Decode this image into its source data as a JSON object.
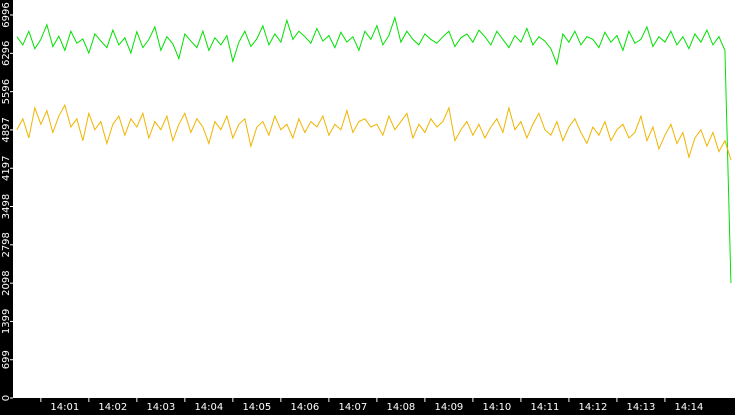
{
  "chart_data": {
    "type": "line",
    "x": [
      0,
      0.125,
      0.25,
      0.375,
      0.5,
      0.625,
      0.75,
      0.875,
      1,
      1.125,
      1.25,
      1.375,
      1.5,
      1.625,
      1.75,
      1.875,
      2,
      2.125,
      2.25,
      2.375,
      2.5,
      2.625,
      2.75,
      2.875,
      3,
      3.125,
      3.25,
      3.375,
      3.5,
      3.625,
      3.75,
      3.875,
      4,
      4.125,
      4.25,
      4.375,
      4.5,
      4.625,
      4.75,
      4.875,
      5,
      5.125,
      5.25,
      5.375,
      5.5,
      5.625,
      5.75,
      5.875,
      6,
      6.125,
      6.25,
      6.375,
      6.5,
      6.625,
      6.75,
      6.875,
      7,
      7.125,
      7.25,
      7.375,
      7.5,
      7.625,
      7.75,
      7.875,
      8,
      8.125,
      8.25,
      8.375,
      8.5,
      8.625,
      8.75,
      8.875,
      9,
      9.125,
      9.25,
      9.375,
      9.5,
      9.625,
      9.75,
      9.875,
      10,
      10.125,
      10.25,
      10.375,
      10.5,
      10.625,
      10.75,
      10.875,
      11,
      11.125,
      11.25,
      11.375,
      11.5,
      11.625,
      11.75,
      11.875,
      12,
      12.125,
      12.25,
      12.375,
      12.5,
      12.625,
      12.75,
      12.875,
      13,
      13.125,
      13.25,
      13.375,
      13.5,
      13.625,
      13.75,
      13.875,
      14,
      14.125,
      14.25,
      14.375,
      14.5,
      14.625,
      14.75,
      14.875
    ],
    "series": [
      {
        "color": "#00e000",
        "values": [
          6600,
          6450,
          6700,
          6380,
          6550,
          6820,
          6420,
          6610,
          6350,
          6700,
          6480,
          6560,
          6300,
          6650,
          6520,
          6400,
          6720,
          6450,
          6580,
          6300,
          6690,
          6400,
          6550,
          6780,
          6350,
          6600,
          6470,
          6200,
          6650,
          6520,
          6400,
          6700,
          6350,
          6580,
          6450,
          6620,
          6150,
          6500,
          6700,
          6420,
          6560,
          6800,
          6450,
          6650,
          6500,
          6900,
          6550,
          6700,
          6600,
          6480,
          6750,
          6520,
          6620,
          6400,
          6680,
          6500,
          6600,
          6350,
          6700,
          6550,
          6800,
          6450,
          6620,
          6950,
          6500,
          6700,
          6550,
          6450,
          6650,
          6550,
          6480,
          6600,
          6700,
          6420,
          6580,
          6650,
          6500,
          6720,
          6600,
          6450,
          6700,
          6550,
          6400,
          6620,
          6500,
          6750,
          6450,
          6600,
          6520,
          6380,
          6100,
          6650,
          6500,
          6700,
          6450,
          6600,
          6550,
          6400,
          6680,
          6500,
          6620,
          6350,
          6700,
          6480,
          6550,
          6780,
          6420,
          6600,
          6500,
          6700,
          6450,
          6600,
          6380,
          6650,
          6500,
          6720,
          6450,
          6600,
          6350,
          2100
        ]
      },
      {
        "color": "#f0b400",
        "values": [
          4900,
          5100,
          4750,
          5300,
          5000,
          5250,
          4850,
          5150,
          5350,
          4950,
          5100,
          4700,
          5200,
          4900,
          5050,
          4650,
          5000,
          5150,
          4800,
          5100,
          4950,
          5200,
          4750,
          5050,
          4900,
          5150,
          4700,
          5000,
          5200,
          4850,
          5100,
          4950,
          4650,
          5050,
          4900,
          5150,
          4750,
          5000,
          5100,
          4600,
          4950,
          5050,
          4800,
          5150,
          4900,
          5000,
          4750,
          5100,
          4850,
          5050,
          4950,
          5150,
          4800,
          5000,
          4900,
          5250,
          4850,
          5050,
          5100,
          4950,
          5000,
          4800,
          5150,
          4900,
          5050,
          5200,
          4750,
          5000,
          4850,
          5100,
          4950,
          5050,
          5300,
          4700,
          4900,
          5050,
          4800,
          5000,
          4750,
          4950,
          5100,
          4850,
          5300,
          4900,
          5050,
          4750,
          5000,
          5200,
          4900,
          4800,
          5050,
          4700,
          4950,
          5100,
          4850,
          4650,
          4950,
          4800,
          5050,
          4700,
          4900,
          5000,
          4750,
          4850,
          5150,
          4700,
          4950,
          4550,
          4800,
          5000,
          4650,
          4850,
          4400,
          4750,
          4900,
          4600,
          4850,
          4500,
          4700,
          4350
        ]
      }
    ],
    "xlim": [
      -0.08,
      14.96
    ],
    "xticks": [
      {
        "value": 1,
        "label": "14:01"
      },
      {
        "value": 2,
        "label": "14:02"
      },
      {
        "value": 3,
        "label": "14:03"
      },
      {
        "value": 4,
        "label": "14:04"
      },
      {
        "value": 5,
        "label": "14:05"
      },
      {
        "value": 6,
        "label": "14:06"
      },
      {
        "value": 7,
        "label": "14:07"
      },
      {
        "value": 8,
        "label": "14:08"
      },
      {
        "value": 9,
        "label": "14:09"
      },
      {
        "value": 10,
        "label": "14:10"
      },
      {
        "value": 11,
        "label": "14:11"
      },
      {
        "value": 12,
        "label": "14:12"
      },
      {
        "value": 13,
        "label": "14:13"
      },
      {
        "value": 14,
        "label": "14:14"
      }
    ],
    "ylim": [
      0,
      7270
    ],
    "yticks": [
      0,
      699,
      1399,
      2098,
      2798,
      3498,
      4197,
      4897,
      5596,
      6296,
      6996
    ]
  }
}
